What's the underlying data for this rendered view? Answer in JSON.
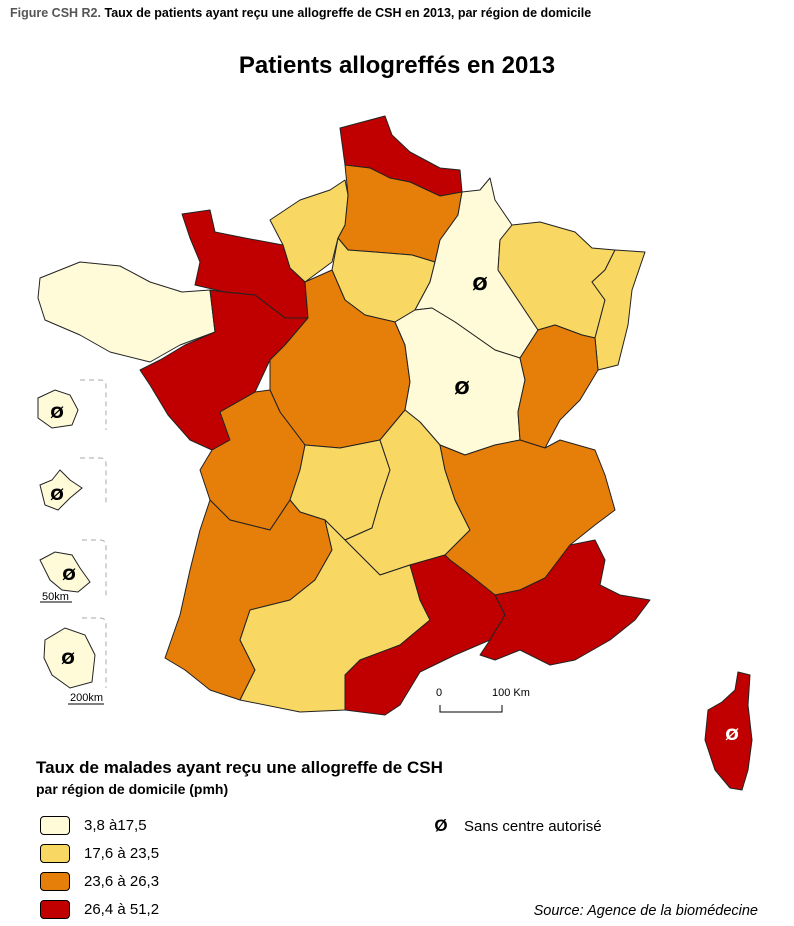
{
  "figure": {
    "label": "Figure CSH R2.",
    "caption": "Taux de patients ayant reçu une allogreffe de CSH en 2013, par région de domicile"
  },
  "map_title": "Patients allogreffés en 2013",
  "legend": {
    "title": "Taux de malades ayant reçu une allogreffe de CSH",
    "subtitle": "par région de domicile (pmh)",
    "classes": [
      {
        "label": "3,8 à17,5",
        "color": "#fffbd9"
      },
      {
        "label": "17,6 à 23,5",
        "color": "#f8d763"
      },
      {
        "label": "23,6 à 26,3",
        "color": "#e67e0a"
      },
      {
        "label": "26,4 à 51,2",
        "color": "#c00000"
      }
    ],
    "no_center": {
      "symbol": "Ø",
      "label": "Sans centre autorisé"
    }
  },
  "scale_bar": {
    "zero": "0",
    "distance": "100 Km"
  },
  "insets": {
    "scale_small": "50km",
    "scale_large": "200km"
  },
  "source": "Source: Agence de la biomédecine",
  "regions": [
    {
      "name": "Nord-Pas-de-Calais",
      "class": 3
    },
    {
      "name": "Picardie",
      "class": 2
    },
    {
      "name": "Haute-Normandie",
      "class": 1
    },
    {
      "name": "Basse-Normandie",
      "class": 3
    },
    {
      "name": "Île-de-France",
      "class": 1
    },
    {
      "name": "Champagne-Ardenne",
      "class": 0,
      "no_center": true
    },
    {
      "name": "Lorraine",
      "class": 1
    },
    {
      "name": "Alsace",
      "class": 1
    },
    {
      "name": "Bretagne",
      "class": 0
    },
    {
      "name": "Pays de la Loire",
      "class": 3
    },
    {
      "name": "Centre",
      "class": 2
    },
    {
      "name": "Bourgogne",
      "class": 0,
      "no_center": true
    },
    {
      "name": "Franche-Comté",
      "class": 2
    },
    {
      "name": "Poitou-Charentes",
      "class": 2
    },
    {
      "name": "Limousin",
      "class": 1
    },
    {
      "name": "Auvergne",
      "class": 1
    },
    {
      "name": "Rhône-Alpes",
      "class": 2
    },
    {
      "name": "Aquitaine",
      "class": 2
    },
    {
      "name": "Midi-Pyrénées",
      "class": 1
    },
    {
      "name": "Languedoc-Roussillon",
      "class": 3
    },
    {
      "name": "Provence-Alpes-Côte d'Azur",
      "class": 3
    },
    {
      "name": "Corse",
      "class": 3,
      "no_center": true
    },
    {
      "name": "Guadeloupe",
      "class": 0,
      "no_center": true
    },
    {
      "name": "Martinique",
      "class": 0,
      "no_center": true
    },
    {
      "name": "Guyane",
      "class": 0,
      "no_center": true
    },
    {
      "name": "La Réunion",
      "class": 0,
      "no_center": true
    }
  ]
}
